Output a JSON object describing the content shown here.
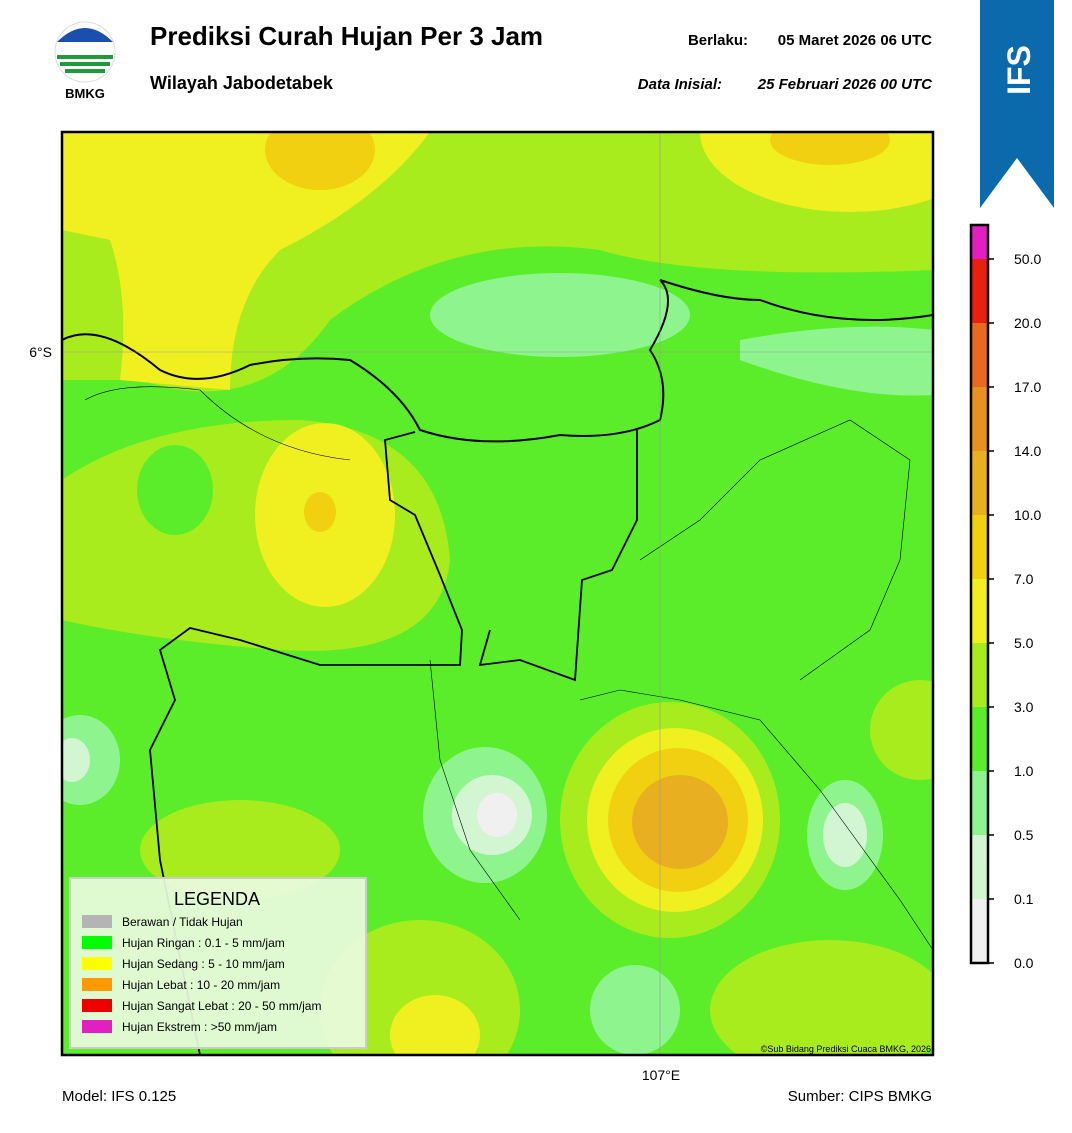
{
  "header": {
    "logo_text": "BMKG",
    "title": "Prediksi Curah Hujan Per 3 Jam",
    "subtitle": "Wilayah Jabodetabek",
    "valid_label": "Berlaku:",
    "valid_time": "05 Maret 2026 06 UTC",
    "init_label": "Data Inisial:",
    "init_time": "25 Februari 2026 00 UTC",
    "badge": "IFS"
  },
  "map": {
    "lat_label": "6°S",
    "lon_label": "107°E",
    "credit": "©Sub Bidang Prediksi Cuaca BMKG, 2026"
  },
  "legend": {
    "title": "LEGENDA",
    "items": [
      {
        "label": "Berawan / Tidak Hujan",
        "color": "#b4b4b4"
      },
      {
        "label": "Hujan Ringan : 0.1 - 5 mm/jam",
        "color": "#00ff00"
      },
      {
        "label": "Hujan Sedang : 5 - 10 mm/jam",
        "color": "#ffff00"
      },
      {
        "label": "Hujan Lebat : 10 - 20 mm/jam",
        "color": "#ff9900"
      },
      {
        "label": "Hujan Sangat Lebat : 20 - 50 mm/jam",
        "color": "#ee0000"
      },
      {
        "label": "Hujan Ekstrem : >50 mm/jam",
        "color": "#e020c0"
      }
    ]
  },
  "colorbar": {
    "ticks": [
      {
        "value": 0,
        "label": "0.0"
      },
      {
        "value": 0.1,
        "label": "0.1"
      },
      {
        "value": 0.5,
        "label": "0.5"
      },
      {
        "value": 1,
        "label": "1.0"
      },
      {
        "value": 3,
        "label": "3.0"
      },
      {
        "value": 5,
        "label": "5.0"
      },
      {
        "value": 7,
        "label": "7.0"
      },
      {
        "value": 10,
        "label": "10.0"
      },
      {
        "value": 14,
        "label": "14.0"
      },
      {
        "value": 17,
        "label": "17.0"
      },
      {
        "value": 20,
        "label": "20.0"
      },
      {
        "value": 50,
        "label": "50.0"
      }
    ],
    "colors": [
      "#f0f0f0",
      "#d2f5d2",
      "#8ef58e",
      "#5ced2a",
      "#a8ec1e",
      "#f0f020",
      "#f0d010",
      "#e8b020",
      "#e89020",
      "#e86a20",
      "#e82010",
      "#e020c0"
    ]
  },
  "footer": {
    "model": "Model: IFS 0.125",
    "source": "Sumber: CIPS BMKG"
  }
}
